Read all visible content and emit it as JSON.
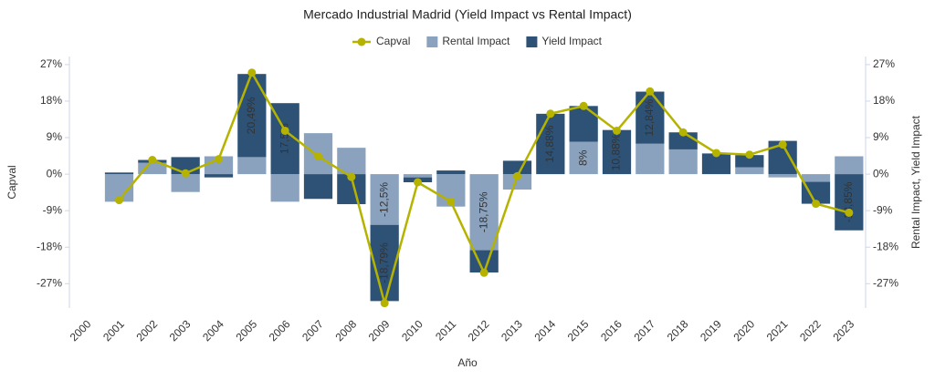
{
  "chart_data": {
    "type": "bar",
    "title": "Mercado Industrial Madrid (Yield Impact vs Rental Impact)",
    "x_label": "Año",
    "y_label": "Capval",
    "y2_label": "Rental Impact, Yield Impact",
    "categories": [
      "2000",
      "2001",
      "2002",
      "2003",
      "2004",
      "2005",
      "2006",
      "2007",
      "2008",
      "2009",
      "2010",
      "2011",
      "2012",
      "2013",
      "2014",
      "2015",
      "2016",
      "2017",
      "2018",
      "2019",
      "2020",
      "2021",
      "2022",
      "2023"
    ],
    "ylim": [
      -33,
      29
    ],
    "yticks": [
      {
        "value": -27,
        "label": "-27%"
      },
      {
        "value": -18,
        "label": "-18%"
      },
      {
        "value": -9,
        "label": "-9%"
      },
      {
        "value": 0,
        "label": "0%"
      },
      {
        "value": 9,
        "label": "9%"
      },
      {
        "value": 18,
        "label": "18%"
      },
      {
        "value": 27,
        "label": "27%"
      }
    ],
    "y2lim": [
      -33,
      29
    ],
    "y2ticks": [
      {
        "value": -27,
        "label": "-27%"
      },
      {
        "value": -18,
        "label": "-18%"
      },
      {
        "value": -9,
        "label": "-9%"
      },
      {
        "value": 0,
        "label": "0%"
      },
      {
        "value": 9,
        "label": "9%"
      },
      {
        "value": 18,
        "label": "18%"
      },
      {
        "value": 27,
        "label": "27%"
      }
    ],
    "grid": false,
    "legend": "top",
    "series": [
      {
        "name": "Capval",
        "type": "line",
        "color": "#b5b300",
        "values": [
          null,
          -6.4,
          3.5,
          0.2,
          3.7,
          25,
          10.7,
          4.4,
          -0.7,
          -31.8,
          -2.0,
          -6.8,
          -24.3,
          -0.5,
          14.9,
          16.8,
          10.7,
          20.4,
          10.3,
          5.2,
          4.8,
          7.3,
          -7.3,
          -9.5
        ]
      },
      {
        "name": "Rental Impact",
        "type": "bar",
        "axis": "y2",
        "color": "#8aa2bd",
        "values": [
          null,
          -6.8,
          2.8,
          -4.4,
          4.4,
          4.2,
          -6.8,
          10.1,
          6.5,
          -12.5,
          -0.8,
          -8,
          -18.75,
          -3.8,
          0,
          8,
          0,
          7.5,
          6.1,
          0,
          1.7,
          -0.8,
          -1.9,
          4.4
        ],
        "value_labels": [
          null,
          null,
          null,
          null,
          null,
          null,
          null,
          null,
          null,
          "-12,5%",
          null,
          null,
          "-18,75%",
          null,
          null,
          "8%",
          null,
          null,
          null,
          null,
          null,
          null,
          null,
          null
        ]
      },
      {
        "name": "Yield Impact",
        "type": "bar",
        "axis": "y2",
        "color": "#2d5275",
        "values": [
          null,
          0.4,
          0.7,
          4.2,
          -0.8,
          20.49,
          17.5,
          -6.1,
          -7.4,
          -18.79,
          -1.2,
          0.9,
          -5.5,
          3.3,
          14.88,
          8.8,
          10.88,
          12.84,
          4.2,
          5.1,
          3.0,
          8.2,
          -5.4,
          -13.85
        ],
        "value_labels": [
          null,
          null,
          null,
          null,
          null,
          "20,49%",
          "17,5%",
          null,
          null,
          "-18,79%",
          null,
          null,
          null,
          null,
          "14,88%",
          null,
          "10,88%",
          "12,84%",
          null,
          null,
          null,
          null,
          null,
          "-13,85%"
        ]
      }
    ]
  }
}
